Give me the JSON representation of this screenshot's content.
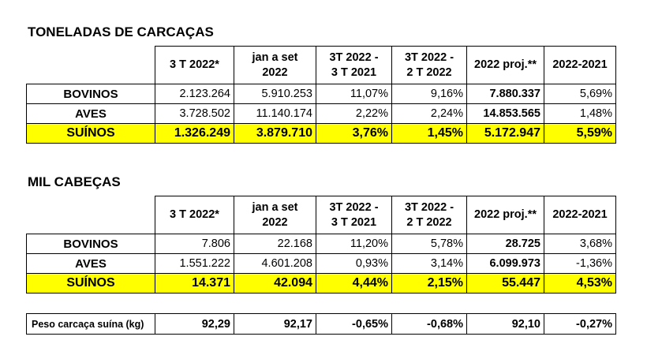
{
  "section1": {
    "title": "TONELADAS DE CARCAÇAS",
    "headers": [
      "3 T 2022*",
      "jan a set\n2022",
      "3T 2022 -\n3 T 2021",
      "3T 2022 -\n2 T 2022",
      "2022 proj.**",
      "2022-2021"
    ],
    "rows": [
      {
        "label": "BOVINOS",
        "values": [
          "2.123.264",
          "5.910.253",
          "11,07%",
          "9,16%",
          "7.880.337",
          "5,69%"
        ]
      },
      {
        "label": "AVES",
        "values": [
          "3.728.502",
          "11.140.174",
          "2,22%",
          "2,24%",
          "14.853.565",
          "1,48%"
        ]
      },
      {
        "label": "SUÍNOS",
        "values": [
          "1.326.249",
          "3.879.710",
          "3,76%",
          "1,45%",
          "5.172.947",
          "5,59%"
        ]
      }
    ]
  },
  "section2": {
    "title": "MIL CABEÇAS",
    "headers": [
      "3 T 2022*",
      "jan a set\n2022",
      "3T 2022 -\n3 T 2021",
      "3T 2022 -\n2 T 2022",
      "2022 proj.**",
      "2022-2021"
    ],
    "rows": [
      {
        "label": "BOVINOS",
        "values": [
          "7.806",
          "22.168",
          "11,20%",
          "5,78%",
          "28.725",
          "3,68%"
        ]
      },
      {
        "label": "AVES",
        "values": [
          "1.551.222",
          "4.601.208",
          "0,93%",
          "3,14%",
          "6.099.973",
          "-1,36%"
        ]
      },
      {
        "label": "SUÍNOS",
        "values": [
          "14.371",
          "42.094",
          "4,44%",
          "2,15%",
          "55.447",
          "4,53%"
        ]
      }
    ]
  },
  "peso": {
    "label": "Peso carcaça suína (kg)",
    "values": [
      "92,29",
      "92,17",
      "-0,65%",
      "-0,68%",
      "92,10",
      "-0,27%"
    ]
  },
  "colors": {
    "highlight": "#ffff00"
  }
}
